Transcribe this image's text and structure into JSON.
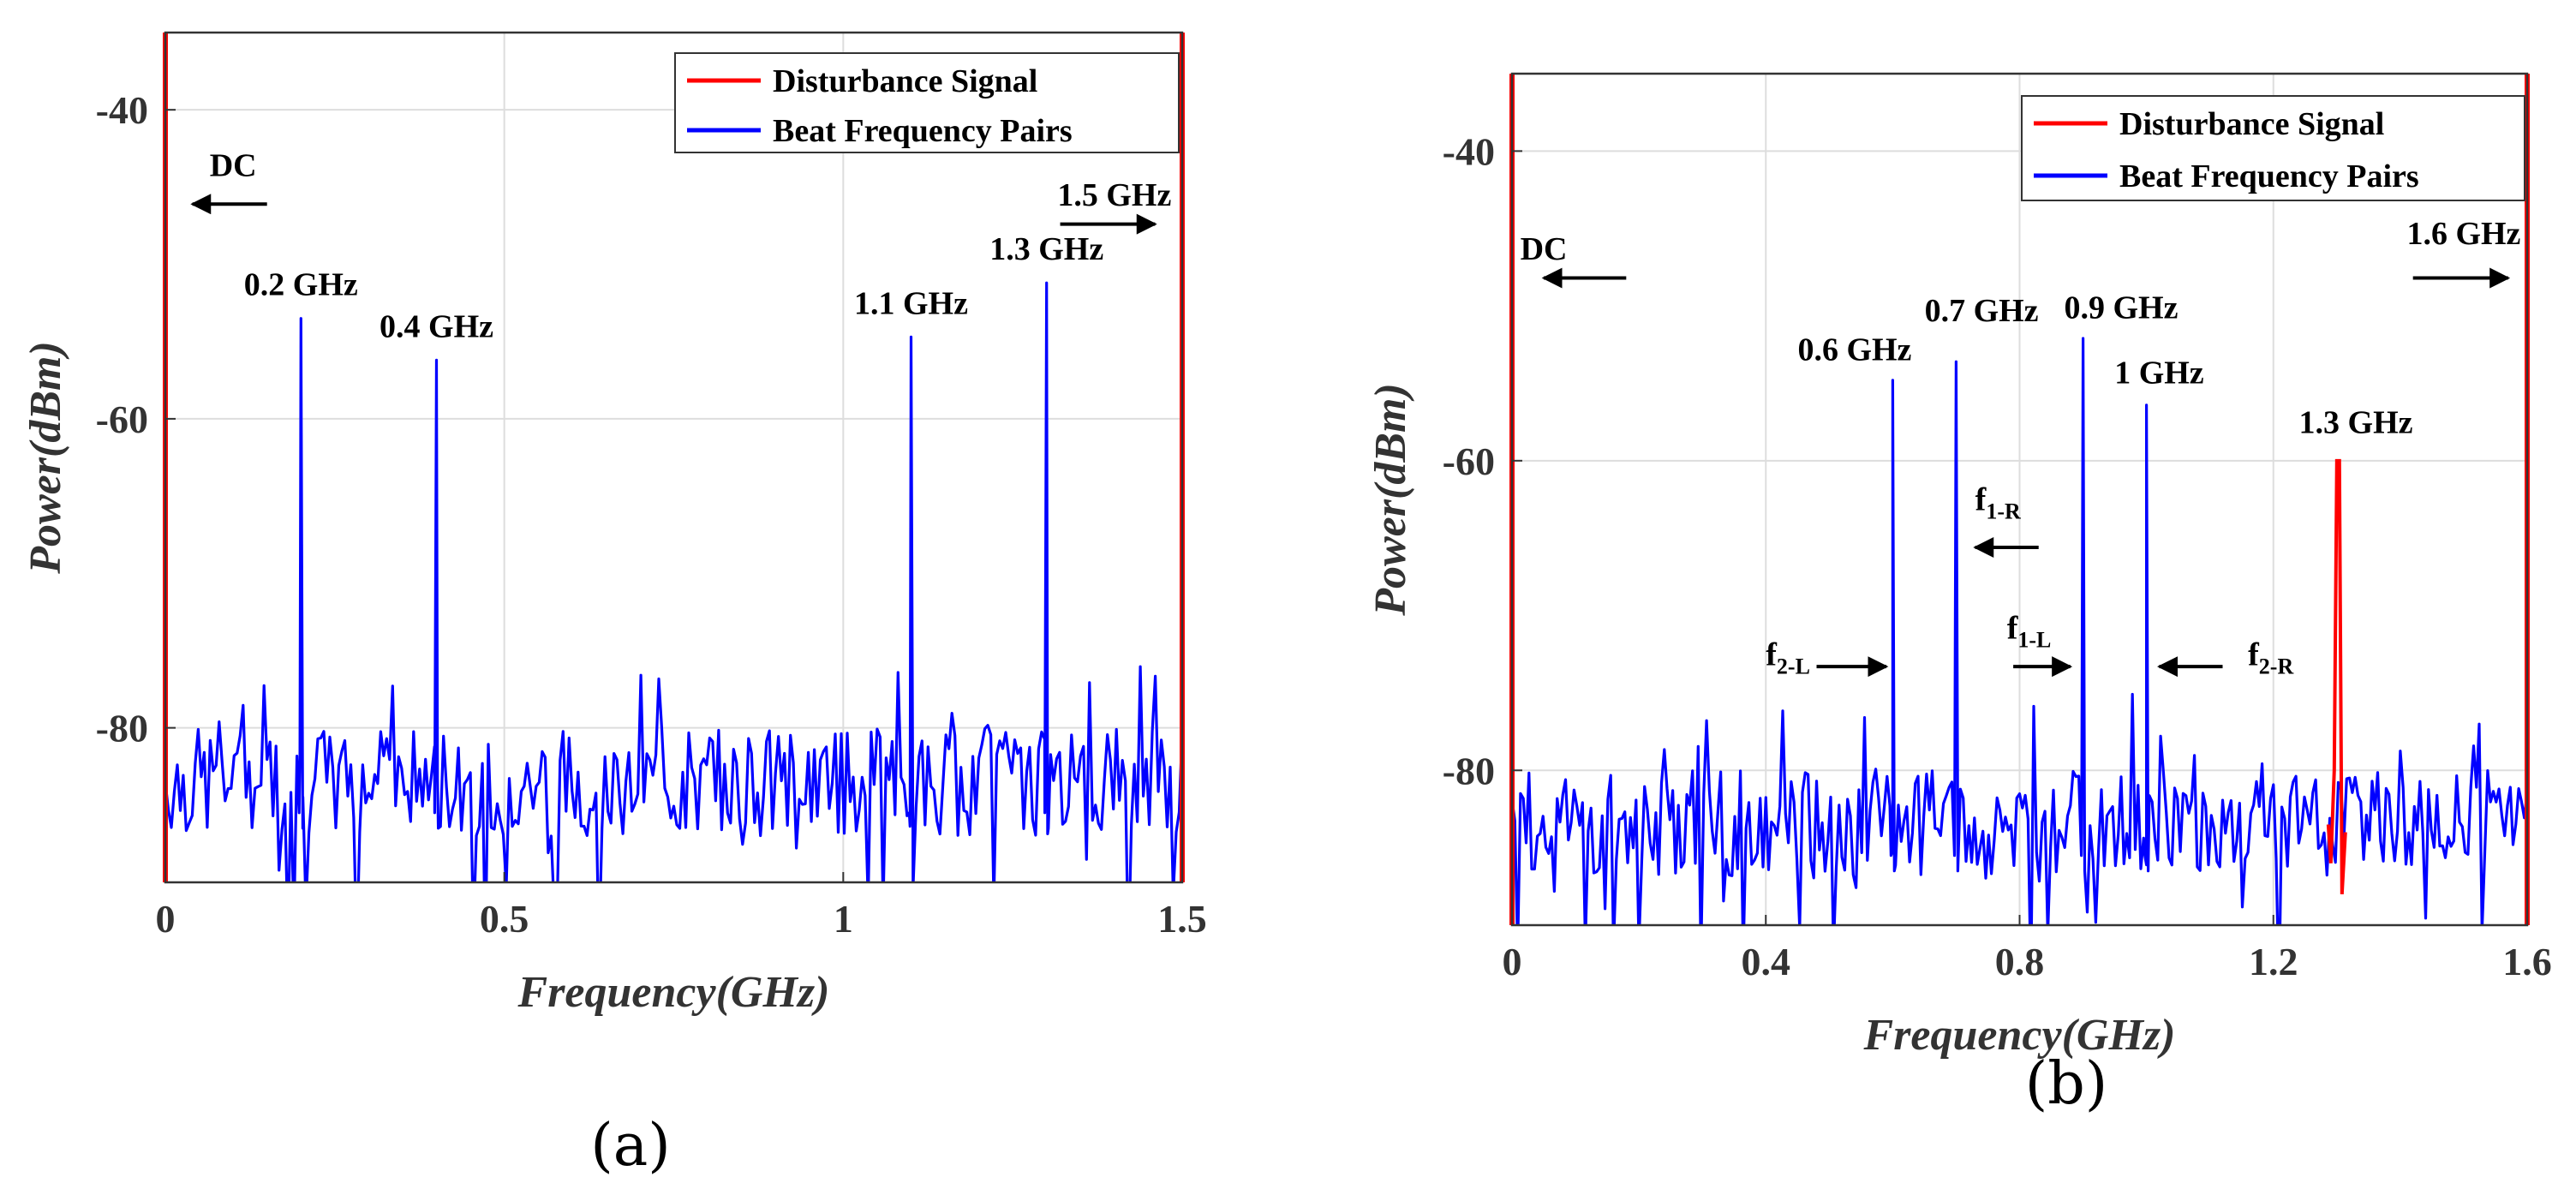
{
  "colors": {
    "disturbance": "#ff0000",
    "beat": "#0000ff",
    "grid": "#dddddd",
    "axis": "#333333"
  },
  "legend": {
    "disturbance": "Disturbance Signal",
    "beat": "Beat Frequency Pairs"
  },
  "chart_data": [
    {
      "id": "a",
      "type": "line",
      "panel_label": "(a)",
      "xlabel": "Frequency(GHz)",
      "ylabel": "Power(dBm)",
      "xlim": [
        0,
        1.5
      ],
      "ylim": [
        -90,
        -35
      ],
      "xticks": [
        0,
        0.5,
        1,
        1.5
      ],
      "xtick_labels": [
        "0",
        "0.5",
        "1",
        "1.5"
      ],
      "yticks": [
        -40,
        -60,
        -80
      ],
      "ytick_labels": [
        "-40",
        "-60",
        "-80"
      ],
      "grid": true,
      "legend_position": "top-right",
      "series": [
        {
          "name": "Disturbance Signal",
          "color_key": "disturbance",
          "edge_lines": [
            0,
            1.5
          ]
        },
        {
          "name": "Beat Frequency Pairs",
          "color_key": "beat",
          "peaks": [
            {
              "x": 0.2,
              "y": -53.5
            },
            {
              "x": 0.4,
              "y": -56.2
            },
            {
              "x": 1.1,
              "y": -54.7
            },
            {
              "x": 1.3,
              "y": -51.2
            }
          ],
          "noise_floor": -83.5,
          "noise_seed": 7,
          "points": 340
        }
      ],
      "annotations": [
        {
          "text": "0.2 GHz",
          "x": 0.2,
          "y": -52
        },
        {
          "text": "0.4 GHz",
          "x": 0.4,
          "y": -54.7
        },
        {
          "text": "1.1 GHz",
          "x": 1.1,
          "y": -53.2
        },
        {
          "text": "1.3 GHz",
          "x": 1.3,
          "y": -49.7
        },
        {
          "text": "DC",
          "x": 0.1,
          "y": -44.3
        },
        {
          "text": "1.5 GHz",
          "x": 1.4,
          "y": -46.2
        }
      ],
      "arrows": [
        {
          "from": 0.15,
          "to": 0.04,
          "y": -46.1
        },
        {
          "from": 1.32,
          "to": 1.46,
          "y": -47.4
        }
      ]
    },
    {
      "id": "b",
      "type": "line",
      "panel_label": "(b)",
      "xlabel": "Frequency(GHz)",
      "ylabel": "Power(dBm)",
      "xlim": [
        0,
        1.6
      ],
      "ylim": [
        -90,
        -35
      ],
      "xticks": [
        0,
        0.4,
        0.8,
        1.2,
        1.6
      ],
      "xtick_labels": [
        "0",
        "0.4",
        "0.8",
        "1.2",
        "1.6"
      ],
      "yticks": [
        -40,
        -60,
        -80
      ],
      "ytick_labels": [
        "-40",
        "-60",
        "-80"
      ],
      "grid": true,
      "legend_position": "top-right",
      "series": [
        {
          "name": "Disturbance Signal",
          "color_key": "disturbance",
          "edge_lines": [
            0,
            1.6
          ],
          "peaks": [
            {
              "x": 1.3,
              "y": -60
            }
          ]
        },
        {
          "name": "Beat Frequency Pairs",
          "color_key": "beat",
          "peaks": [
            {
              "x": 0.6,
              "y": -54.8
            },
            {
              "x": 0.7,
              "y": -53.6
            },
            {
              "x": 0.9,
              "y": -52.1
            },
            {
              "x": 1.0,
              "y": -56.4
            }
          ],
          "noise_floor": -83.5,
          "noise_seed": 13,
          "points": 360
        }
      ],
      "annotations": [
        {
          "text": "0.6 GHz",
          "x": 0.54,
          "y": -53.5
        },
        {
          "text": "0.7 GHz",
          "x": 0.74,
          "y": -51.0
        },
        {
          "text": "0.9 GHz",
          "x": 0.96,
          "y": -50.8
        },
        {
          "text": "1 GHz",
          "x": 1.02,
          "y": -55.0
        },
        {
          "text": "1.3 GHz",
          "x": 1.33,
          "y": -58.2
        },
        {
          "text": "DC",
          "x": 0.05,
          "y": -47.0
        },
        {
          "text": "1.6 GHz",
          "x": 1.5,
          "y": -46.0
        }
      ],
      "sub_annotations": [
        {
          "main": "f",
          "sub": "1-R",
          "x": 0.73,
          "y": -63.2
        },
        {
          "main": "f",
          "sub": "1-L",
          "x": 0.78,
          "y": -71.5
        },
        {
          "main": "f",
          "sub": "2-L",
          "x": 0.4,
          "y": -73.2
        },
        {
          "main": "f",
          "sub": "2-R",
          "x": 1.16,
          "y": -73.2
        }
      ],
      "arrows": [
        {
          "from": 0.18,
          "to": 0.05,
          "y": -48.2
        },
        {
          "from": 1.42,
          "to": 1.57,
          "y": -48.2
        },
        {
          "from": 0.83,
          "to": 0.73,
          "y": -65.6
        },
        {
          "from": 0.79,
          "to": 0.88,
          "y": -73.3
        },
        {
          "from": 0.48,
          "to": 0.59,
          "y": -73.3
        },
        {
          "from": 1.12,
          "to": 1.02,
          "y": -73.3
        }
      ]
    }
  ]
}
